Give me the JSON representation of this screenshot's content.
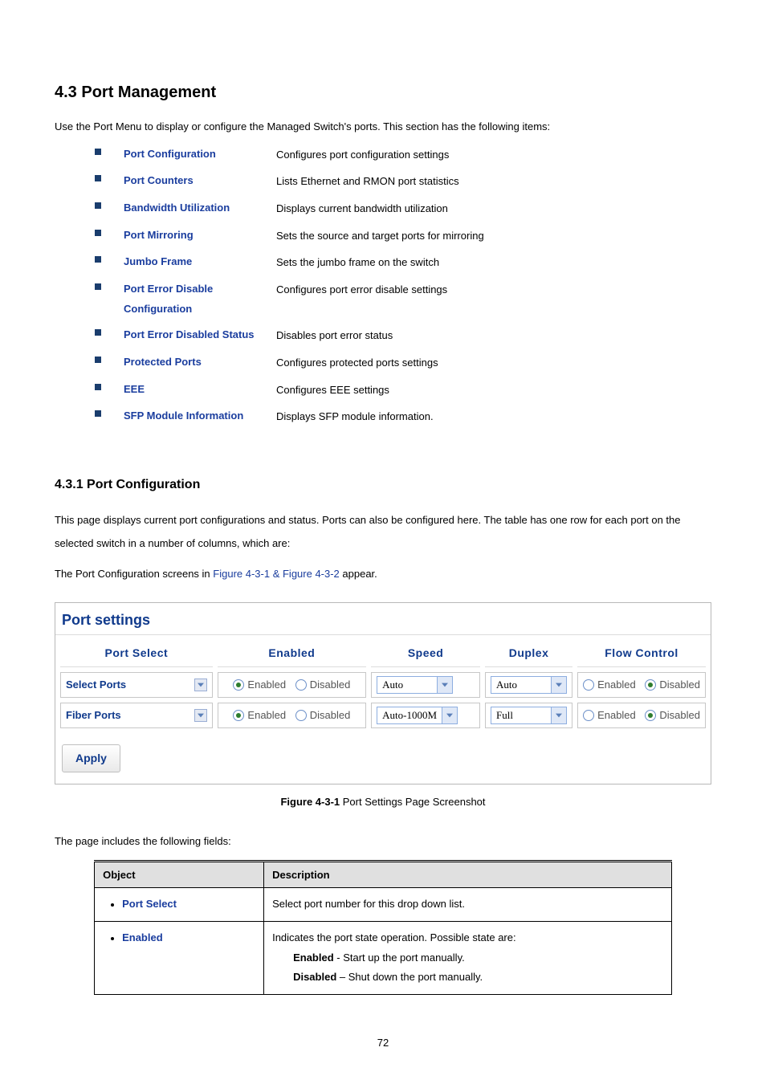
{
  "section": {
    "title": "4.3 Port Management",
    "intro": "Use the Port Menu to display or configure the Managed Switch's ports. This section has the following items:"
  },
  "menu_items": [
    {
      "name": "Port Configuration",
      "desc": "Configures port configuration settings"
    },
    {
      "name": "Port Counters",
      "desc": "Lists Ethernet and RMON port statistics"
    },
    {
      "name": "Bandwidth Utilization",
      "desc": "Displays current bandwidth utilization"
    },
    {
      "name": "Port Mirroring",
      "desc": "Sets the source and target ports for mirroring"
    },
    {
      "name": "Jumbo Frame",
      "desc": "Sets the jumbo frame on the switch"
    },
    {
      "name": "Port Error Disable Configuration",
      "desc": "Configures port error disable settings"
    },
    {
      "name": "Port Error Disabled Status",
      "desc": "Disables port error status"
    },
    {
      "name": "Protected Ports",
      "desc": "Configures protected ports settings"
    },
    {
      "name": "EEE",
      "desc": "Configures EEE settings"
    },
    {
      "name": "SFP Module Information",
      "desc": "Displays SFP module information."
    }
  ],
  "subsection": {
    "title": "4.3.1 Port Configuration",
    "p1": "This page displays current port configurations and status. Ports can also be configured here. The table has one row for each port on the selected switch in a number of columns, which are:",
    "p2_prefix": "The Port Configuration screens in ",
    "p2_link": "Figure 4-3-1 & Figure 4-3-2",
    "p2_suffix": " appear."
  },
  "port_settings": {
    "panel_title": "Port settings",
    "headers": {
      "port_select": "Port Select",
      "enabled": "Enabled",
      "speed": "Speed",
      "duplex": "Duplex",
      "flow_control": "Flow Control"
    },
    "labels": {
      "enabled": "Enabled",
      "disabled": "Disabled"
    },
    "rows": [
      {
        "port_label": "Select Ports",
        "enabled_selected": "enabled",
        "speed": "Auto",
        "duplex": "Auto",
        "flow_selected": "disabled"
      },
      {
        "port_label": "Fiber Ports",
        "enabled_selected": "enabled",
        "speed": "Auto-1000M",
        "duplex": "Full",
        "flow_selected": "disabled"
      }
    ],
    "apply_label": "Apply"
  },
  "figure_caption": {
    "bold": "Figure 4-3-1",
    "rest": " Port Settings Page Screenshot"
  },
  "fields_intro": "The page includes the following fields:",
  "objdesc": {
    "headers": {
      "object": "Object",
      "description": "Description"
    },
    "rows": [
      {
        "obj": "Port Select",
        "desc_lines": [
          {
            "text": "Select port number for this drop down list."
          }
        ]
      },
      {
        "obj": "Enabled",
        "desc_lines": [
          {
            "text": "Indicates the port state operation. Possible state are:"
          },
          {
            "bold": "Enabled",
            "text": " - Start up the port manually.",
            "indent": true
          },
          {
            "bold": "Disabled",
            "text": " – Shut down the port manually.",
            "indent": true
          }
        ]
      }
    ]
  },
  "page_number": "72",
  "colors": {
    "heading_link": "#1a3d9e",
    "bullet": "#1a3d6d",
    "panel_title": "#103a8c"
  }
}
